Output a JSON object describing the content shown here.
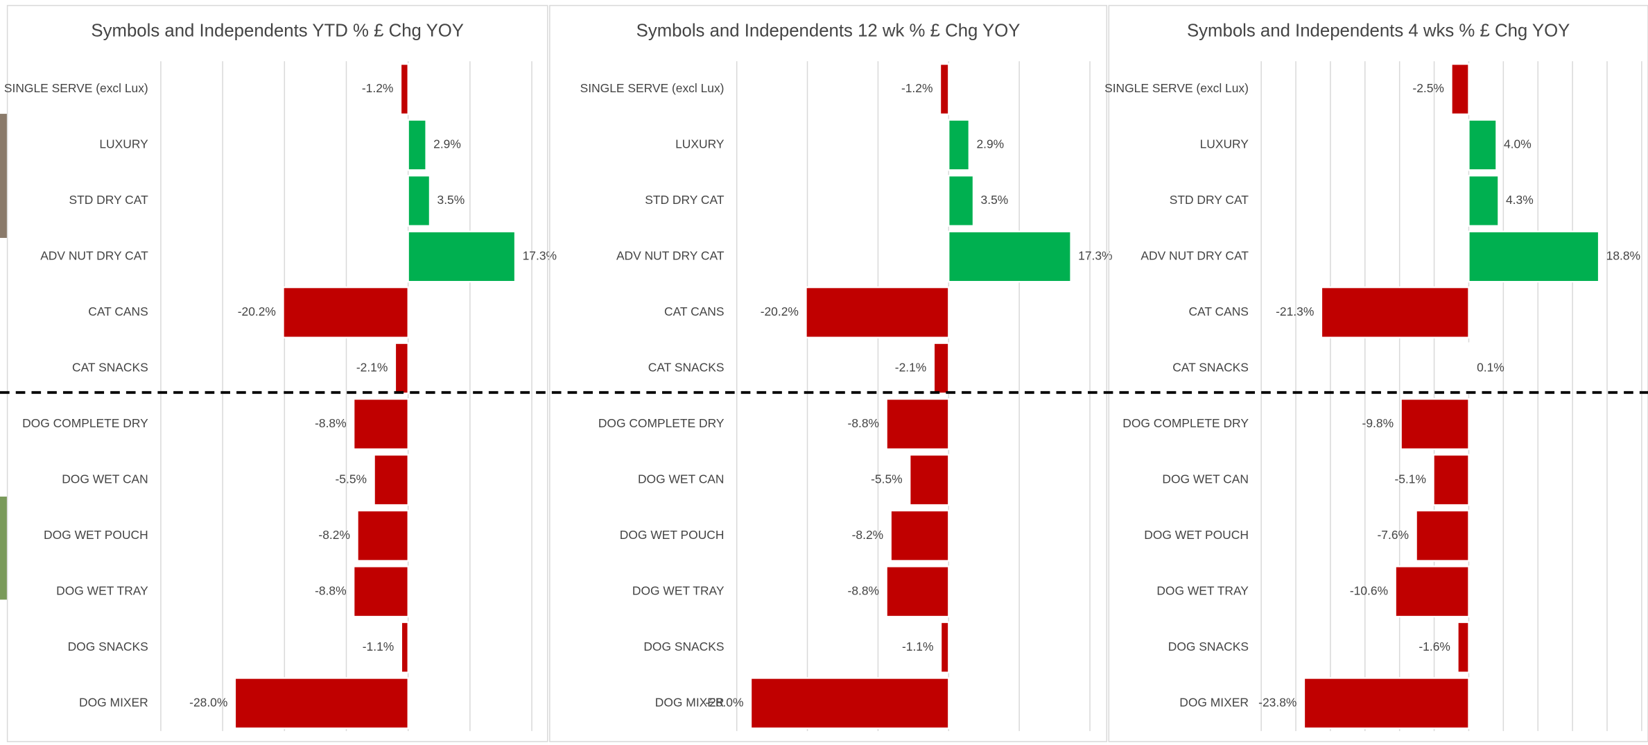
{
  "chart_data": [
    {
      "type": "bar",
      "orientation": "horizontal",
      "title": "Symbols and Independents YTD % £ Chg YOY",
      "categories": [
        "SINGLE SERVE (excl Lux)",
        "LUXURY",
        "STD DRY CAT",
        "ADV NUT DRY CAT",
        "CAT CANS",
        "CAT SNACKS",
        "DOG COMPLETE DRY",
        "DOG WET CAN",
        "DOG WET POUCH",
        "DOG WET TRAY",
        "DOG SNACKS",
        "DOG MIXER"
      ],
      "values": [
        -1.2,
        2.9,
        3.5,
        17.3,
        -20.2,
        -2.1,
        -8.8,
        -5.5,
        -8.2,
        -8.8,
        -1.1,
        -28.0
      ],
      "value_labels": [
        "-1.2%",
        "2.9%",
        "3.5%",
        "17.3%",
        "-20.2%",
        "-2.1%",
        "-8.8%",
        "-5.5%",
        "-8.2%",
        "-8.8%",
        "-1.1%",
        "-28.0%"
      ],
      "positive_color": "#00b050",
      "negative_color": "#c00000",
      "xlim": [
        -40,
        20
      ],
      "xticks": [
        -40,
        -30,
        -20,
        -10,
        0,
        10,
        20
      ],
      "grid": true
    },
    {
      "type": "bar",
      "orientation": "horizontal",
      "title": "Symbols and Independents 12 wk % £ Chg YOY",
      "categories": [
        "SINGLE SERVE (excl Lux)",
        "LUXURY",
        "STD DRY CAT",
        "ADV NUT DRY CAT",
        "CAT CANS",
        "CAT SNACKS",
        "DOG COMPLETE DRY",
        "DOG WET CAN",
        "DOG WET POUCH",
        "DOG WET TRAY",
        "DOG SNACKS",
        "DOG MIXER"
      ],
      "values": [
        -1.2,
        2.9,
        3.5,
        17.3,
        -20.2,
        -2.1,
        -8.8,
        -5.5,
        -8.2,
        -8.8,
        -1.1,
        -28.0
      ],
      "value_labels": [
        "-1.2%",
        "2.9%",
        "3.5%",
        "17.3%",
        "-20.2%",
        "-2.1%",
        "-8.8%",
        "-5.5%",
        "-8.2%",
        "-8.8%",
        "-1.1%",
        "-28.0%"
      ],
      "positive_color": "#00b050",
      "negative_color": "#c00000",
      "xlim": [
        -30,
        20
      ],
      "xticks": [
        -30,
        -20,
        -10,
        0,
        10,
        20
      ],
      "grid": true
    },
    {
      "type": "bar",
      "orientation": "horizontal",
      "title": "Symbols and Independents 4 wks % £ Chg YOY",
      "categories": [
        "SINGLE SERVE (excl Lux)",
        "LUXURY",
        "STD DRY CAT",
        "ADV NUT DRY CAT",
        "CAT CANS",
        "CAT SNACKS",
        "DOG COMPLETE DRY",
        "DOG WET CAN",
        "DOG WET POUCH",
        "DOG WET TRAY",
        "DOG SNACKS",
        "DOG MIXER"
      ],
      "values": [
        -2.5,
        4.0,
        4.3,
        18.8,
        -21.3,
        0.1,
        -9.8,
        -5.1,
        -7.6,
        -10.6,
        -1.6,
        -23.8
      ],
      "value_labels": [
        "-2.5%",
        "4.0%",
        "4.3%",
        "18.8%",
        "-21.3%",
        "0.1%",
        "-9.8%",
        "-5.1%",
        "-7.6%",
        "-10.6%",
        "-1.6%",
        "-23.8%"
      ],
      "positive_color": "#00b050",
      "negative_color": "#c00000",
      "xlim": [
        -30,
        25
      ],
      "xticks": [
        -30,
        -25,
        -20,
        -15,
        -10,
        -5,
        0,
        5,
        10,
        15,
        20,
        25
      ],
      "grid": true
    }
  ]
}
